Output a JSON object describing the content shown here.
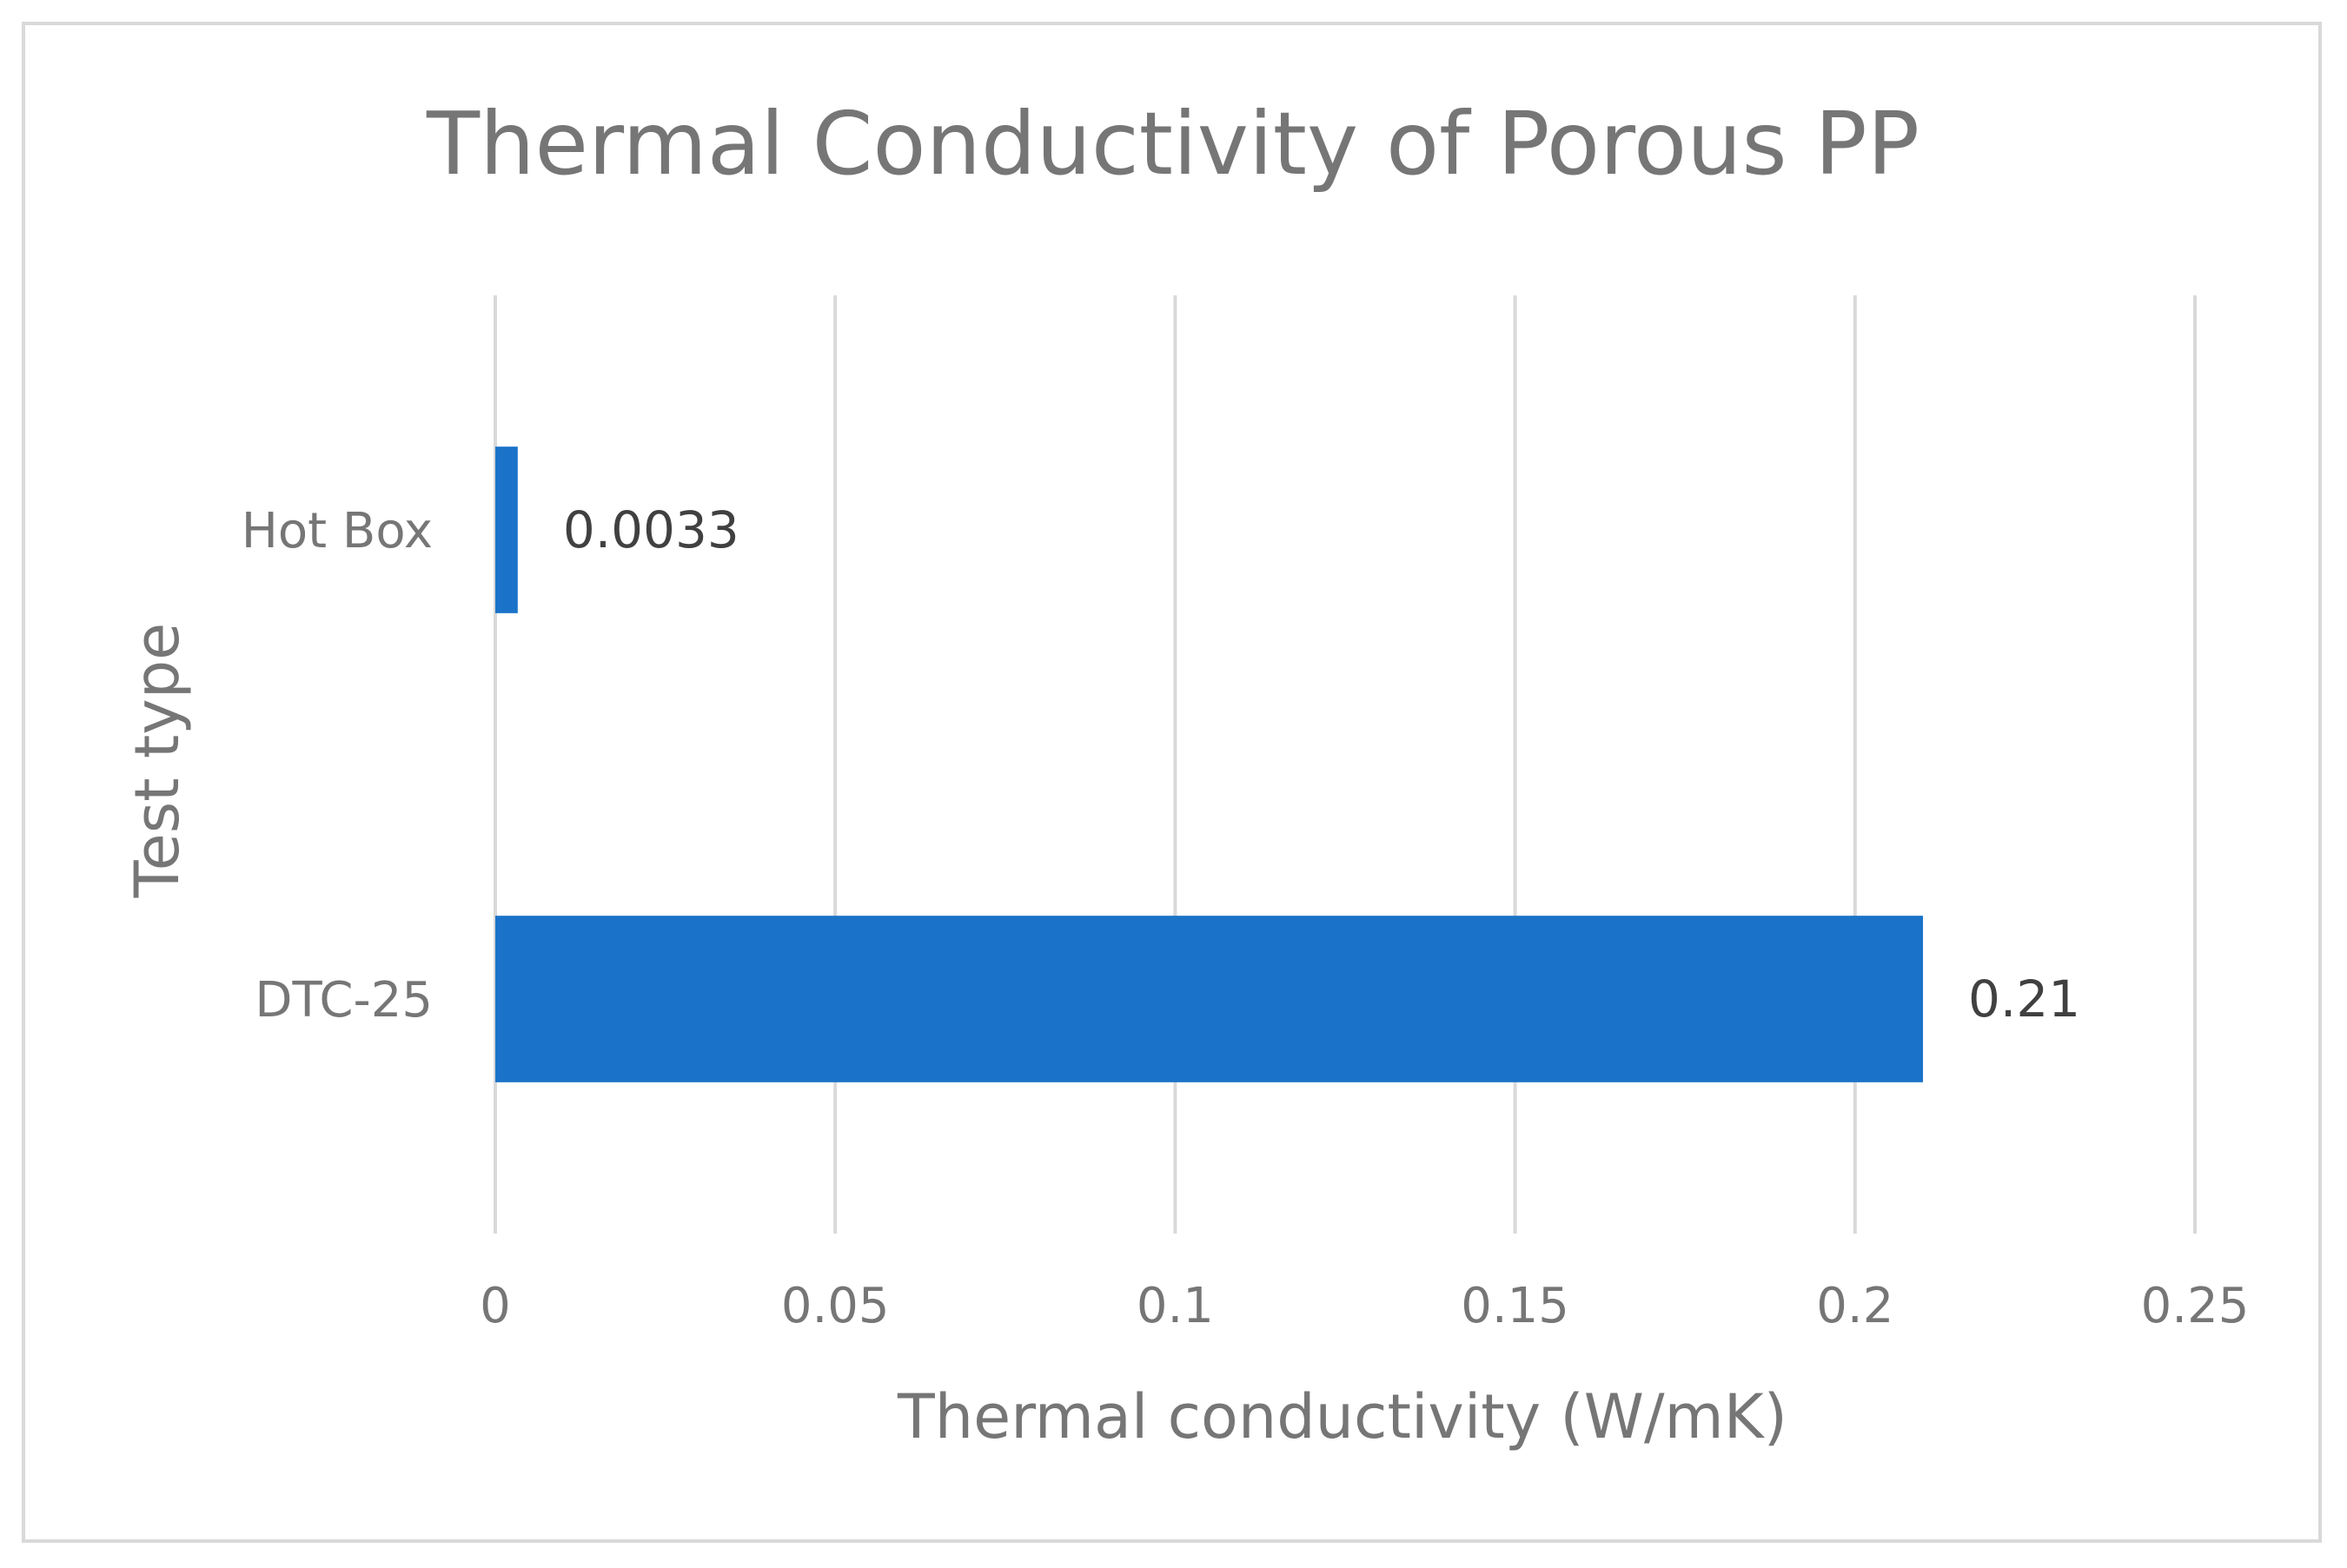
{
  "chart_data": {
    "type": "bar",
    "orientation": "horizontal",
    "title": "Thermal Conductivity of Porous PP",
    "xlabel": "Thermal conductivity (W/mK)",
    "ylabel": "Test type",
    "categories": [
      "Hot Box",
      "DTC-25"
    ],
    "values": [
      0.0033,
      0.21
    ],
    "data_labels": [
      "0.0033",
      "0.21"
    ],
    "xlim": [
      0,
      0.25
    ],
    "x_ticks": [
      0,
      0.05,
      0.1,
      0.15,
      0.2,
      0.25
    ],
    "x_tick_labels": [
      "0",
      "0.05",
      "0.1",
      "0.15",
      "0.2",
      "0.25"
    ],
    "grid": "vertical",
    "legend": "none",
    "bar_color": "#1a73c8",
    "grid_color": "#d9d9d9",
    "text_color": "#767676"
  }
}
